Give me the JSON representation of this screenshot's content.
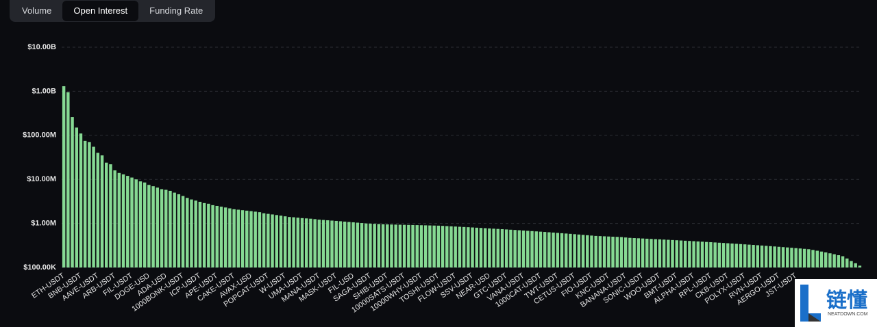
{
  "tabs": {
    "items": [
      "Volume",
      "Open Interest",
      "Funding Rate"
    ],
    "active": 1
  },
  "watermark": {
    "title": "链懂",
    "subtitle": "NEATDOWN.COM"
  },
  "chart_data": {
    "type": "bar",
    "log_scale": true,
    "grid": true,
    "color": "#86d993",
    "ylim": [
      100000,
      10000000000
    ],
    "yticks": [
      {
        "value": 100000,
        "label": "$100.00K"
      },
      {
        "value": 1000000,
        "label": "$1.00M"
      },
      {
        "value": 10000000,
        "label": "$10.00M"
      },
      {
        "value": 100000000,
        "label": "$100.00M"
      },
      {
        "value": 1000000000,
        "label": "$1.00B"
      },
      {
        "value": 10000000000,
        "label": "$10.00B"
      }
    ],
    "categories": [
      "ETH-USDT",
      null,
      null,
      null,
      "BNB-USDT",
      null,
      null,
      null,
      "AAVE-USDT",
      null,
      null,
      null,
      "ARB-USDT",
      null,
      null,
      null,
      "FIL-USDT",
      null,
      null,
      null,
      "DOGE-USD",
      null,
      null,
      null,
      "ADA-USD",
      null,
      null,
      null,
      "1000BONK-USDT",
      null,
      null,
      null,
      "ICP-USDT",
      null,
      null,
      null,
      "APE-USDT",
      null,
      null,
      null,
      "CAKE-USDT",
      null,
      null,
      null,
      "AVAX-USD",
      null,
      null,
      null,
      "POPCAT-USDT",
      null,
      null,
      null,
      "W-USDT",
      null,
      null,
      null,
      "UMA-USDT",
      null,
      null,
      null,
      "MANA-USDT",
      null,
      null,
      null,
      "MASK-USDT",
      null,
      null,
      null,
      "FIL-USD",
      null,
      null,
      null,
      "SAGA-USDT",
      null,
      null,
      null,
      "SHIB-USDT",
      null,
      null,
      null,
      "10000SATS-USDT",
      null,
      null,
      null,
      "10000WHY-USDT",
      null,
      null,
      null,
      "TOSHI-USDT",
      null,
      null,
      null,
      "FLOW-USDT",
      null,
      null,
      null,
      "SSV-USDT",
      null,
      null,
      null,
      "NEAR-USD",
      null,
      null,
      null,
      "GTC-USDT",
      null,
      null,
      null,
      "VANA-USDT",
      null,
      null,
      null,
      "1000CAT-USDT",
      null,
      null,
      null,
      "TWT-USDT",
      null,
      null,
      null,
      "CETUS-USDT",
      null,
      null,
      null,
      "FIO-USDT",
      null,
      null,
      null,
      "KNC-USDT",
      null,
      null,
      null,
      "BANANA-USDT",
      null,
      null,
      null,
      "SONIC-USDT",
      null,
      null,
      null,
      "WOO-USDT",
      null,
      null,
      null,
      "BMT-USDT",
      null,
      null,
      null,
      "ALPHA-USDT",
      null,
      null,
      null,
      "RPL-USDT",
      null,
      null,
      null,
      "CKB-USDT",
      null,
      null,
      null,
      "POLYX-USDT",
      null,
      null,
      null,
      "RVN-USDT",
      null,
      null,
      null,
      "AERGO-USDT",
      null,
      null,
      null,
      "JST-USDT",
      null,
      null,
      null,
      null,
      null,
      null,
      null,
      null,
      null,
      null,
      null,
      null,
      null,
      null,
      null
    ],
    "values": [
      1300000000,
      950000000,
      260000000,
      150000000,
      110000000,
      75000000,
      70000000,
      55000000,
      40000000,
      35000000,
      24000000,
      22000000,
      16000000,
      14000000,
      13000000,
      12000000,
      11000000,
      10000000,
      9000000,
      8500000,
      7500000,
      7000000,
      6500000,
      6000000,
      5800000,
      5500000,
      5000000,
      4600000,
      4200000,
      3800000,
      3500000,
      3300000,
      3100000,
      2900000,
      2800000,
      2600000,
      2500000,
      2400000,
      2300000,
      2200000,
      2100000,
      2050000,
      2000000,
      1950000,
      1900000,
      1850000,
      1800000,
      1700000,
      1650000,
      1600000,
      1550000,
      1500000,
      1450000,
      1400000,
      1380000,
      1350000,
      1320000,
      1300000,
      1280000,
      1250000,
      1220000,
      1200000,
      1180000,
      1160000,
      1140000,
      1120000,
      1100000,
      1080000,
      1060000,
      1040000,
      1020000,
      1000000,
      990000,
      980000,
      970000,
      960000,
      950000,
      945000,
      940000,
      935000,
      930000,
      925000,
      920000,
      915000,
      910000,
      905000,
      900000,
      895000,
      890000,
      880000,
      870000,
      860000,
      850000,
      840000,
      830000,
      820000,
      810000,
      800000,
      790000,
      780000,
      770000,
      760000,
      750000,
      740000,
      730000,
      720000,
      710000,
      700000,
      690000,
      680000,
      670000,
      660000,
      650000,
      640000,
      630000,
      620000,
      610000,
      600000,
      590000,
      580000,
      570000,
      560000,
      550000,
      540000,
      530000,
      520000,
      515000,
      510000,
      505000,
      500000,
      495000,
      490000,
      480000,
      470000,
      465000,
      460000,
      455000,
      450000,
      445000,
      440000,
      435000,
      430000,
      425000,
      420000,
      415000,
      410000,
      405000,
      400000,
      395000,
      390000,
      385000,
      380000,
      375000,
      370000,
      365000,
      360000,
      355000,
      350000,
      345000,
      340000,
      335000,
      330000,
      325000,
      320000,
      315000,
      310000,
      305000,
      300000,
      295000,
      290000,
      285000,
      280000,
      275000,
      270000,
      265000,
      260000,
      250000,
      240000,
      230000,
      220000,
      210000,
      200000,
      190000,
      180000,
      160000,
      140000,
      125000,
      110000
    ]
  }
}
